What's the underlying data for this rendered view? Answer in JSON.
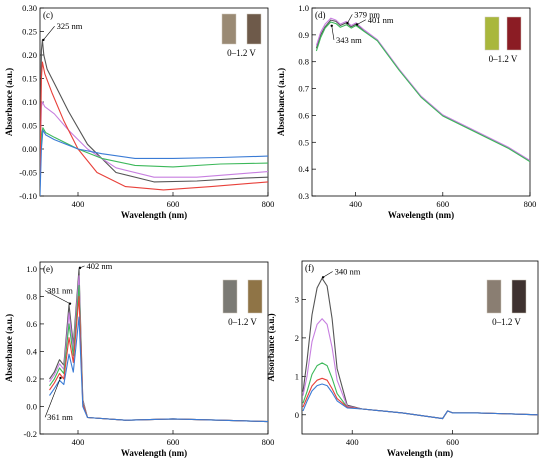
{
  "figure": {
    "series_colors": [
      "#555555",
      "#c77fe0",
      "#3cb85a",
      "#e8403a",
      "#3a7bd5",
      "#7b5cc8"
    ],
    "photo_colors": {
      "c": [
        "#9a8a74",
        "#6e5a4a"
      ],
      "d": [
        "#a9b73c",
        "#8b1c24"
      ],
      "e": [
        "#7b7a74",
        "#8f7446"
      ],
      "f": [
        "#8a7e72",
        "#3f3230"
      ]
    }
  },
  "chart_data": [
    {
      "id": "c",
      "panel_label": "(c)",
      "type": "line",
      "xlabel": "Wavelength (nm)",
      "ylabel": "Absorbance (a.u.)",
      "xlim": [
        320,
        800
      ],
      "ylim": [
        -0.1,
        0.3
      ],
      "xticks": [
        400,
        600,
        800
      ],
      "yticks": [
        -0.1,
        -0.05,
        0.0,
        0.05,
        0.1,
        0.15,
        0.2,
        0.25,
        0.3
      ],
      "ytick_labels": [
        "-0.10",
        "-0.05",
        "0.00",
        "0.05",
        "0.10",
        "0.15",
        "0.20",
        "0.25",
        "0.30"
      ],
      "range_label": "0–1.2 V",
      "annotations": [
        {
          "text": "325 nm",
          "arrow_x": 325,
          "arrow_y": 0.23,
          "tx": 355,
          "ty": 0.255
        }
      ],
      "series": [
        {
          "x": [
            320,
            323,
            325,
            328,
            335,
            350,
            380,
            420,
            480,
            560,
            650,
            750,
            800
          ],
          "y": [
            -0.08,
            0.21,
            0.232,
            0.2,
            0.17,
            0.14,
            0.08,
            0.01,
            -0.05,
            -0.07,
            -0.068,
            -0.062,
            -0.06
          ]
        },
        {
          "x": [
            320,
            323,
            325,
            330,
            350,
            380,
            420,
            480,
            560,
            650,
            750,
            800
          ],
          "y": [
            -0.02,
            0.09,
            0.1,
            0.09,
            0.075,
            0.04,
            0.0,
            -0.04,
            -0.06,
            -0.06,
            -0.052,
            -0.048
          ]
        },
        {
          "x": [
            320,
            323,
            326,
            332,
            350,
            400,
            450,
            520,
            600,
            700,
            800
          ],
          "y": [
            -0.07,
            0.03,
            0.045,
            0.035,
            0.025,
            0.0,
            -0.02,
            -0.035,
            -0.038,
            -0.032,
            -0.03
          ]
        },
        {
          "x": [
            320,
            323,
            325,
            330,
            345,
            370,
            400,
            440,
            500,
            580,
            680,
            800
          ],
          "y": [
            -0.06,
            0.15,
            0.185,
            0.16,
            0.12,
            0.06,
            0.0,
            -0.05,
            -0.08,
            -0.087,
            -0.08,
            -0.07
          ]
        },
        {
          "x": [
            320,
            323,
            326,
            332,
            350,
            400,
            450,
            520,
            600,
            700,
            800
          ],
          "y": [
            -0.1,
            0.0,
            0.04,
            0.03,
            0.02,
            0.0,
            -0.01,
            -0.02,
            -0.02,
            -0.018,
            -0.015
          ]
        }
      ]
    },
    {
      "id": "d",
      "panel_label": "(d)",
      "type": "line",
      "xlabel": "Wavelength (nm)",
      "ylabel": "Absorbance (a.u.)",
      "xlim": [
        300,
        800
      ],
      "ylim": [
        0.3,
        1.0
      ],
      "xticks": [
        400,
        600,
        800
      ],
      "yticks": [
        0.3,
        0.4,
        0.5,
        0.6,
        0.7,
        0.8,
        0.9,
        1.0
      ],
      "ytick_labels": [
        "0.3",
        "0.4",
        "0.5",
        "0.6",
        "0.7",
        "0.8",
        "0.9",
        "1.0"
      ],
      "range_label": "0–1.2 V",
      "annotations": [
        {
          "text": "379 nm",
          "arrow_x": 379,
          "arrow_y": 0.94,
          "tx": 397,
          "ty": 0.965
        },
        {
          "text": "401 nm",
          "arrow_x": 401,
          "arrow_y": 0.935,
          "tx": 428,
          "ty": 0.945
        },
        {
          "text": "343 nm",
          "arrow_x": 343,
          "arrow_y": 0.93,
          "tx": 355,
          "ty": 0.87
        }
      ],
      "series": [
        {
          "x": [
            310,
            320,
            330,
            343,
            355,
            365,
            379,
            390,
            401,
            420,
            450,
            500,
            550,
            600,
            650,
            700,
            750,
            800
          ],
          "y": [
            0.85,
            0.9,
            0.93,
            0.955,
            0.95,
            0.935,
            0.945,
            0.93,
            0.94,
            0.915,
            0.88,
            0.77,
            0.67,
            0.6,
            0.56,
            0.52,
            0.48,
            0.43
          ]
        },
        {
          "x": [
            310,
            320,
            330,
            343,
            355,
            365,
            379,
            390,
            401,
            420,
            450,
            500,
            550,
            600,
            650,
            700,
            750,
            800
          ],
          "y": [
            0.86,
            0.91,
            0.94,
            0.962,
            0.955,
            0.94,
            0.95,
            0.935,
            0.945,
            0.918,
            0.882,
            0.772,
            0.672,
            0.602,
            0.562,
            0.522,
            0.482,
            0.432
          ]
        },
        {
          "x": [
            310,
            320,
            330,
            343,
            355,
            365,
            379,
            390,
            401,
            420,
            450,
            500,
            550,
            600,
            650,
            700,
            750,
            800
          ],
          "y": [
            0.84,
            0.89,
            0.925,
            0.948,
            0.942,
            0.928,
            0.938,
            0.925,
            0.935,
            0.912,
            0.878,
            0.768,
            0.668,
            0.598,
            0.558,
            0.518,
            0.478,
            0.428
          ]
        }
      ]
    },
    {
      "id": "e",
      "panel_label": "(e)",
      "type": "line",
      "xlabel": "Wavelength (nm)",
      "ylabel": "Absorbance (a.u.)",
      "xlim": [
        320,
        800
      ],
      "ylim": [
        -0.2,
        1.05
      ],
      "xticks": [
        400,
        600,
        800
      ],
      "yticks": [
        -0.2,
        0.0,
        0.2,
        0.4,
        0.6,
        0.8,
        1.0
      ],
      "ytick_labels": [
        "-0.2",
        "0.0",
        "0.2",
        "0.4",
        "0.6",
        "0.8",
        "1.0"
      ],
      "range_label": "0–1.2 V",
      "annotations": [
        {
          "text": "402 nm",
          "arrow_x": 402,
          "arrow_y": 1.0,
          "tx": 418,
          "ty": 1.0
        },
        {
          "text": "381 nm",
          "arrow_x": 381,
          "arrow_y": 0.74,
          "tx": 335,
          "ty": 0.82
        },
        {
          "text": "361 nm",
          "arrow_x": 361,
          "arrow_y": 0.2,
          "tx": 335,
          "ty": -0.1
        }
      ],
      "series": [
        {
          "x": [
            340,
            350,
            361,
            370,
            381,
            390,
            402,
            410,
            420,
            500,
            600,
            700,
            800
          ],
          "y": [
            0.2,
            0.25,
            0.34,
            0.3,
            0.74,
            0.45,
            1.0,
            0.05,
            -0.08,
            -0.1,
            -0.09,
            -0.1,
            -0.11
          ]
        },
        {
          "x": [
            340,
            350,
            361,
            370,
            381,
            390,
            402,
            410,
            420,
            500,
            600,
            700,
            800
          ],
          "y": [
            0.18,
            0.23,
            0.31,
            0.27,
            0.68,
            0.41,
            0.95,
            0.04,
            -0.08,
            -0.1,
            -0.09,
            -0.1,
            -0.11
          ]
        },
        {
          "x": [
            340,
            350,
            361,
            370,
            381,
            390,
            402,
            410,
            420,
            500,
            600,
            700,
            800
          ],
          "y": [
            0.15,
            0.2,
            0.28,
            0.24,
            0.6,
            0.37,
            0.88,
            0.03,
            -0.08,
            -0.1,
            -0.09,
            -0.1,
            -0.11
          ]
        },
        {
          "x": [
            340,
            350,
            361,
            370,
            381,
            390,
            402,
            410,
            420,
            500,
            600,
            700,
            800
          ],
          "y": [
            0.12,
            0.17,
            0.24,
            0.2,
            0.5,
            0.32,
            0.8,
            0.02,
            -0.08,
            -0.1,
            -0.09,
            -0.1,
            -0.11
          ]
        },
        {
          "x": [
            340,
            350,
            361,
            370,
            381,
            390,
            402,
            410,
            420,
            500,
            600,
            700,
            800
          ],
          "y": [
            0.08,
            0.13,
            0.19,
            0.16,
            0.38,
            0.25,
            0.65,
            0.0,
            -0.08,
            -0.1,
            -0.09,
            -0.1,
            -0.11
          ]
        }
      ]
    },
    {
      "id": "f",
      "panel_label": "(f)",
      "type": "line",
      "xlabel": "Wavelength (nm)",
      "ylabel": "Absorbance (a.u.)",
      "xlim": [
        300,
        770
      ],
      "ylim": [
        -0.5,
        4.0
      ],
      "xticks": [
        400,
        600
      ],
      "yticks": [
        0,
        1,
        2,
        3
      ],
      "ytick_labels": [
        "0",
        "1",
        "2",
        "3"
      ],
      "range_label": "0–1.2 V",
      "annotations": [
        {
          "text": "340 nm",
          "arrow_x": 340,
          "arrow_y": 3.55,
          "tx": 365,
          "ty": 3.65
        }
      ],
      "series": [
        {
          "x": [
            302,
            310,
            320,
            330,
            340,
            350,
            360,
            370,
            390,
            420,
            500,
            580,
            590,
            600,
            650,
            770
          ],
          "y": [
            0.6,
            1.4,
            2.6,
            3.3,
            3.55,
            3.35,
            2.5,
            1.2,
            0.25,
            0.15,
            0.05,
            -0.1,
            0.1,
            0.05,
            0.05,
            0.0
          ]
        },
        {
          "x": [
            302,
            310,
            320,
            330,
            340,
            350,
            360,
            370,
            390,
            420,
            500,
            580,
            590,
            600,
            650,
            770
          ],
          "y": [
            0.5,
            1.0,
            1.9,
            2.35,
            2.5,
            2.35,
            1.75,
            0.9,
            0.22,
            0.15,
            0.05,
            -0.1,
            0.1,
            0.05,
            0.05,
            0.0
          ]
        },
        {
          "x": [
            302,
            310,
            320,
            330,
            340,
            350,
            360,
            370,
            390,
            420,
            500,
            580,
            590,
            600,
            650,
            770
          ],
          "y": [
            0.3,
            0.6,
            1.05,
            1.28,
            1.35,
            1.28,
            0.95,
            0.55,
            0.2,
            0.15,
            0.05,
            -0.1,
            0.1,
            0.05,
            0.05,
            0.0
          ]
        },
        {
          "x": [
            302,
            310,
            320,
            330,
            340,
            350,
            360,
            370,
            390,
            420,
            500,
            580,
            590,
            600,
            650,
            770
          ],
          "y": [
            0.2,
            0.45,
            0.75,
            0.9,
            0.95,
            0.9,
            0.68,
            0.42,
            0.2,
            0.15,
            0.05,
            -0.1,
            0.1,
            0.05,
            0.05,
            0.0
          ]
        },
        {
          "x": [
            302,
            310,
            320,
            330,
            340,
            350,
            360,
            370,
            390,
            420,
            500,
            580,
            590,
            600,
            650,
            770
          ],
          "y": [
            0.1,
            0.35,
            0.62,
            0.76,
            0.8,
            0.76,
            0.58,
            0.36,
            0.18,
            0.15,
            0.05,
            -0.1,
            0.1,
            0.05,
            0.05,
            0.0
          ]
        }
      ]
    }
  ]
}
